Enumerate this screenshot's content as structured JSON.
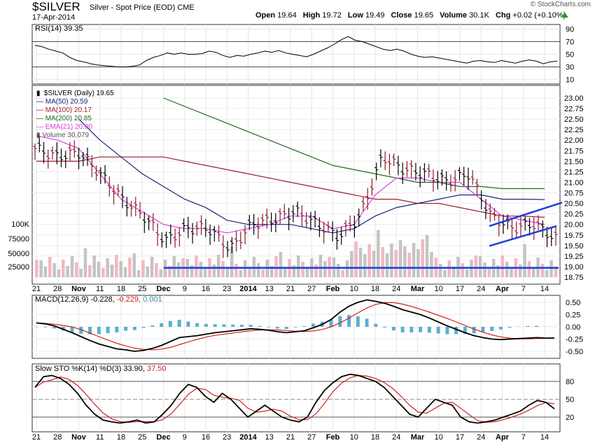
{
  "header": {
    "symbol": "$SILVER",
    "description": "Silver - Spot Price (EOD)",
    "exchange": "CME",
    "date": "17-Apr-2014",
    "open_label": "Open",
    "open": "19.64",
    "high_label": "High",
    "high": "19.72",
    "low_label": "Low",
    "low": "19.49",
    "close_label": "Close",
    "close": "19.65",
    "volume_label": "Volume",
    "volume": "30.1K",
    "chg_label": "Chg",
    "chg": "+0.02 (+0.10%)",
    "copyright": "© StockCharts.com",
    "up_color": "#1a9a1a"
  },
  "rsi": {
    "label": "RSI(14) 39.35",
    "ticks": [
      "90",
      "70",
      "50",
      "30",
      "10"
    ]
  },
  "price": {
    "legend": {
      "main": "$SILVER (Daily) 19.65",
      "ma50": "MA(50) 20.59",
      "ma100": "MA(100) 20.17",
      "ma200": "MA(200) 20.85",
      "ema21": "EMA(21) 20.00",
      "volume": "Volume 30,079"
    },
    "y_ticks": [
      "23.00",
      "22.75",
      "22.50",
      "22.25",
      "22.00",
      "21.75",
      "21.50",
      "21.25",
      "21.00",
      "20.75",
      "20.50",
      "20.25",
      "20.00",
      "19.75",
      "19.50",
      "19.25",
      "19.00",
      "18.75"
    ],
    "volume_ticks": [
      "100K",
      "75000",
      "50000",
      "25000"
    ]
  },
  "macd": {
    "label_prefix": "MACD(12,26,9)",
    "macd": "-0.228",
    "signal": "-0.229",
    "hist": "0.001",
    "y_ticks": [
      "0.50",
      "0.25",
      "0.00",
      "-0.25",
      "-0.50"
    ]
  },
  "sto": {
    "label_prefix": "Slow STO %K(14) %D(3)",
    "k": "33.90",
    "d": "37.50",
    "y_ticks": [
      "80",
      "50",
      "20"
    ]
  },
  "x_labels": [
    "21",
    "28",
    "Nov",
    "11",
    "18",
    "25",
    "Dec",
    "9",
    "16",
    "23",
    "2014",
    "13",
    "21",
    "27",
    "Feb",
    "10",
    "18",
    "24",
    "Mar",
    "10",
    "17",
    "24",
    "Apr",
    "7",
    "14"
  ],
  "colors": {
    "ma50": "#1a237e",
    "ma100": "#a02030",
    "ma200": "#1e6b1e",
    "ema21": "#e040e0",
    "bar_up": "#000000",
    "bar_down": "#8b1a2a",
    "trend": "#1f3fd9",
    "macd_line": "#000000",
    "signal_line": "#d42020",
    "hist": "#5ab0d0"
  },
  "chart_data": {
    "type": "line",
    "title": "$SILVER Silver - Spot Price (EOD) CME",
    "x": [
      "21",
      "28",
      "Nov",
      "11",
      "18",
      "25",
      "Dec",
      "9",
      "16",
      "23",
      "2014",
      "13",
      "21",
      "27",
      "Feb",
      "10",
      "18",
      "24",
      "Mar",
      "10",
      "17",
      "24",
      "Apr",
      "7",
      "14"
    ],
    "series": [
      {
        "name": "$SILVER (Daily)",
        "values": [
          21.8,
          21.6,
          21.7,
          21.2,
          20.6,
          20.2,
          19.6,
          19.9,
          19.9,
          19.4,
          20.0,
          20.1,
          20.3,
          20.0,
          19.7,
          20.2,
          21.6,
          21.3,
          21.2,
          21.0,
          21.2,
          20.2,
          19.9,
          20.0,
          19.65
        ]
      },
      {
        "name": "MA(50)",
        "values": [
          null,
          null,
          22.5,
          22.0,
          21.6,
          21.2,
          20.9,
          20.6,
          20.4,
          20.1,
          20.0,
          20.0,
          20.0,
          19.9,
          19.8,
          19.9,
          20.2,
          20.4,
          20.5,
          20.6,
          20.7,
          20.7,
          20.6,
          20.6,
          20.59
        ]
      },
      {
        "name": "MA(100)",
        "values": [
          21.5,
          21.5,
          21.5,
          21.6,
          21.6,
          21.6,
          21.6,
          21.5,
          21.4,
          21.3,
          21.2,
          21.1,
          21.0,
          20.9,
          20.8,
          20.7,
          20.6,
          20.6,
          20.5,
          20.5,
          20.4,
          20.3,
          20.2,
          20.2,
          20.17
        ]
      },
      {
        "name": "MA(200)",
        "values": [
          null,
          null,
          null,
          null,
          null,
          null,
          23.0,
          22.8,
          22.6,
          22.4,
          22.2,
          22.0,
          21.8,
          21.6,
          21.4,
          21.3,
          21.2,
          21.1,
          21.0,
          21.0,
          20.9,
          20.9,
          20.85,
          20.85,
          20.85
        ]
      },
      {
        "name": "EMA(21)",
        "values": [
          22.1,
          22.0,
          21.8,
          21.2,
          20.6,
          20.3,
          20.0,
          19.9,
          19.9,
          19.8,
          19.9,
          20.0,
          20.2,
          20.2,
          19.9,
          20.0,
          20.7,
          21.1,
          21.1,
          21.0,
          21.0,
          20.6,
          20.2,
          20.1,
          20.0
        ]
      }
    ],
    "ylim": [
      18.75,
      23.0
    ],
    "xlabel": "",
    "ylabel": "",
    "grid": true,
    "indicators": {
      "rsi": {
        "name": "RSI(14)",
        "last": 39.35,
        "ylim": [
          10,
          90
        ]
      },
      "macd": {
        "name": "MACD(12,26,9)",
        "macd": -0.228,
        "signal": -0.229,
        "histogram": 0.001,
        "ylim": [
          -0.6,
          0.6
        ]
      },
      "slow_sto": {
        "name": "Slow STO %K(14) %D(3)",
        "k": 33.9,
        "d": 37.5,
        "ylim": [
          0,
          100
        ]
      }
    }
  }
}
